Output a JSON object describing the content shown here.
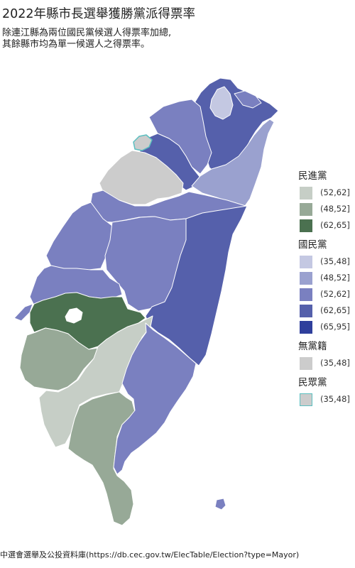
{
  "title": "2022年縣市長選舉獲勝黨派得票率",
  "subtitle_line1": "除連江縣為兩位國民黨候選人得票率加總,",
  "subtitle_line2": "其餘縣市均為單一候選人之得票率。",
  "source": "中選會選舉及公投資料庫(https://db.cec.gov.tw/ElecTable/Election?type=Mayor)",
  "legend": [
    {
      "party": "民進黨",
      "items": [
        {
          "range": "(52,62]",
          "color": "#c6cec6"
        },
        {
          "range": "(48,52]",
          "color": "#97a997"
        },
        {
          "range": "(62,65]",
          "color": "#4b7150"
        }
      ]
    },
    {
      "party": "國民黨",
      "items": [
        {
          "range": "(35,48]",
          "color": "#c4c8e2"
        },
        {
          "range": "(48,52]",
          "color": "#9aa1cf"
        },
        {
          "range": "(52,62]",
          "color": "#7a80c0"
        },
        {
          "range": "(62,65]",
          "color": "#5560ab"
        },
        {
          "range": "(65,95]",
          "color": "#2f3f9c"
        }
      ]
    },
    {
      "party": "無黨籍",
      "items": [
        {
          "range": "(35,48]",
          "color": "#cccccc"
        }
      ]
    },
    {
      "party": "民眾黨",
      "items": [
        {
          "range": "(35,48]",
          "color": "#cccccc",
          "border": "#5bbfc0"
        }
      ]
    }
  ],
  "map_colors": {
    "keelung": "#7a80c0",
    "taipei": "#c4c8e2",
    "new_taipei": "#5560ab",
    "yilan": "#9aa1cf",
    "taoyuan": "#7a80c0",
    "hsinchu_city": "#cccccc",
    "hsinchu_county": "#5560ab",
    "miaoli": "#cccccc",
    "taichung": "#7a80c0",
    "changhua": "#7a80c0",
    "nantou": "#7a80c0",
    "yunlin": "#7a80c0",
    "chiayi_county": "#4b7150",
    "chiayi_city": "#ffffff",
    "tainan": "#97a997",
    "kaohsiung": "#c6cec6",
    "pingtung": "#97a997",
    "hualien": "#5560ab",
    "taitung": "#7a80c0",
    "islet": "#7a80c0"
  }
}
